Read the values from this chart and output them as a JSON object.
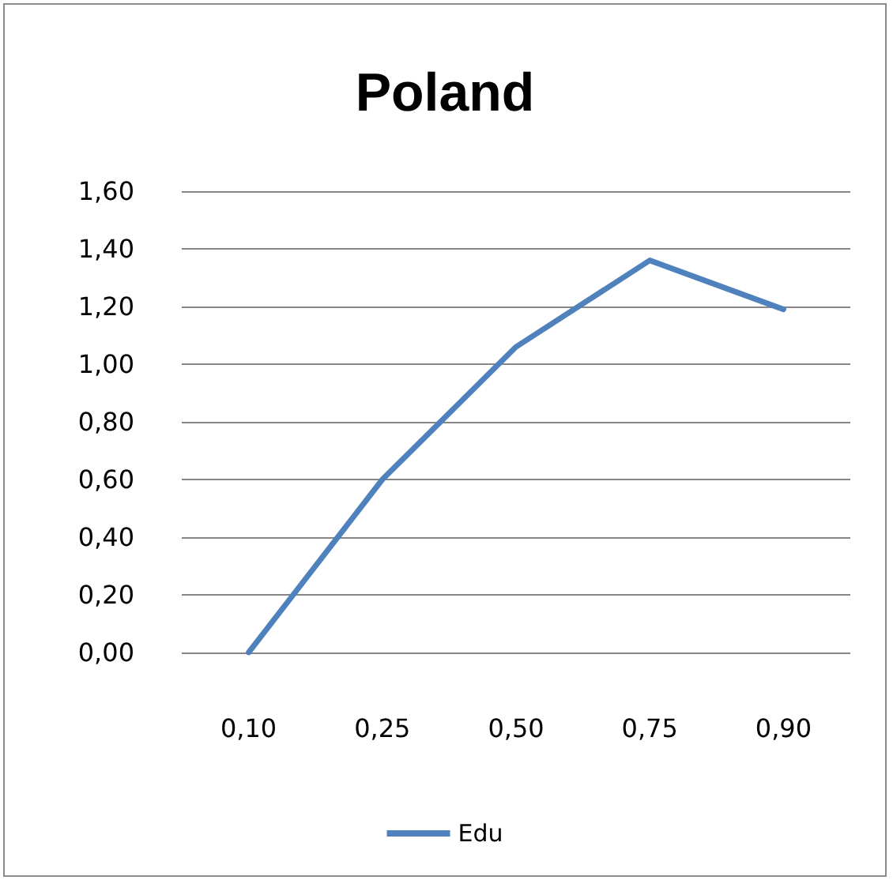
{
  "chart_data": {
    "type": "line",
    "title": "Poland",
    "categories": [
      "0,10",
      "0,25",
      "0,50",
      "0,75",
      "0,90"
    ],
    "series": [
      {
        "name": "Edu",
        "color": "#4f81bd",
        "values": [
          0,
          0.6,
          1.06,
          1.36,
          1.19
        ]
      }
    ],
    "ylim": [
      0,
      1.6
    ],
    "yticks": [
      {
        "value": 0,
        "label": "0,00"
      },
      {
        "value": 0.2,
        "label": "0,20"
      },
      {
        "value": 0.4,
        "label": "0,40"
      },
      {
        "value": 0.6,
        "label": "0,60"
      },
      {
        "value": 0.8,
        "label": "0,80"
      },
      {
        "value": 1,
        "label": "1,00"
      },
      {
        "value": 1.2,
        "label": "1,20"
      },
      {
        "value": 1.4,
        "label": "1,40"
      },
      {
        "value": 1.6,
        "label": "1,60"
      }
    ],
    "grid": "y",
    "legend": "bottom",
    "marker": "none",
    "line_style": "solid"
  }
}
